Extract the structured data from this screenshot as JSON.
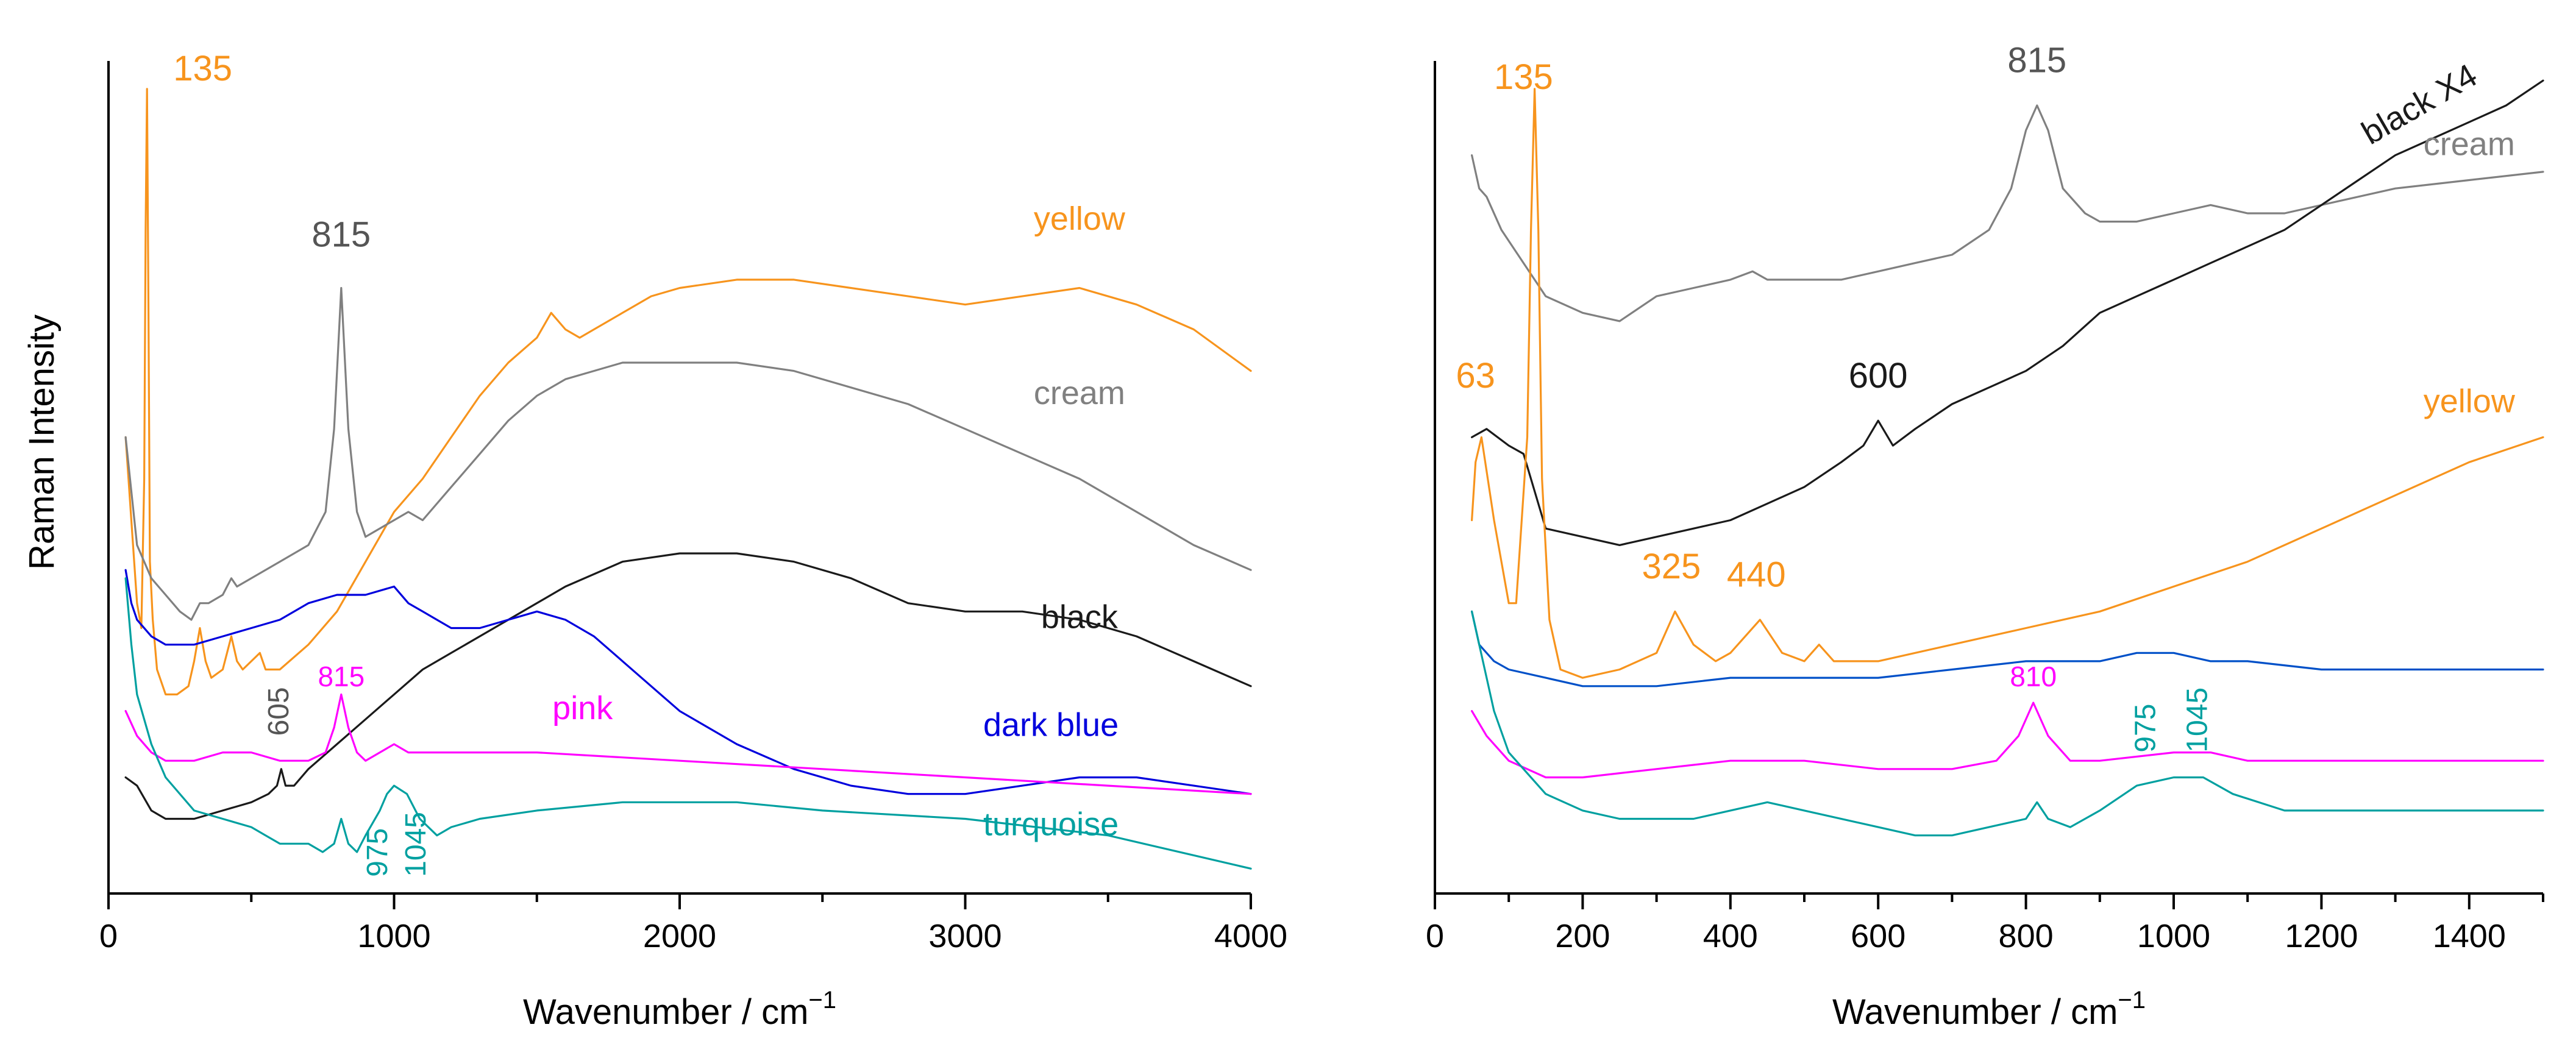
{
  "chart_data": [
    {
      "type": "line",
      "panel": "left",
      "xlabel": "Wavenumber / cm",
      "xlabel_sup": "−1",
      "ylabel": "Raman Intensity",
      "xlim": [
        0,
        4000
      ],
      "xticks": [
        "0",
        "1000",
        "2000",
        "3000",
        "4000"
      ],
      "xtick_values": [
        0,
        1000,
        2000,
        3000,
        4000
      ],
      "ylim": [
        0,
        100
      ],
      "yticks_shown": false,
      "series": [
        {
          "name": "yellow",
          "color": "#f7941d",
          "x": [
            60,
            100,
            115,
            125,
            130,
            135,
            140,
            145,
            155,
            170,
            200,
            240,
            280,
            300,
            320,
            340,
            360,
            400,
            430,
            450,
            470,
            500,
            530,
            550,
            600,
            700,
            800,
            900,
            1000,
            1100,
            1200,
            1300,
            1400,
            1500,
            1550,
            1600,
            1650,
            1700,
            1800,
            1900,
            2000,
            2200,
            2400,
            2600,
            2800,
            3000,
            3200,
            3400,
            3600,
            3800,
            4000
          ],
          "y": [
            55,
            35,
            32,
            50,
            80,
            97,
            70,
            40,
            33,
            27,
            24,
            24,
            25,
            28,
            32,
            28,
            26,
            27,
            31,
            28,
            27,
            28,
            29,
            27,
            27,
            30,
            34,
            40,
            46,
            50,
            55,
            60,
            64,
            67,
            70,
            68,
            67,
            68,
            70,
            72,
            73,
            74,
            74,
            73,
            72,
            71,
            72,
            73,
            71,
            68,
            63
          ]
        },
        {
          "name": "cream",
          "color": "#808080",
          "x": [
            60,
            100,
            150,
            200,
            250,
            290,
            320,
            350,
            400,
            430,
            450,
            500,
            600,
            700,
            760,
            790,
            815,
            840,
            870,
            900,
            1000,
            1050,
            1100,
            1200,
            1300,
            1400,
            1500,
            1600,
            1700,
            1800,
            1900,
            2000,
            2200,
            2400,
            2600,
            2800,
            3000,
            3200,
            3400,
            3600,
            3800,
            4000
          ],
          "y": [
            55,
            42,
            38,
            36,
            34,
            33,
            35,
            35,
            36,
            38,
            37,
            38,
            40,
            42,
            46,
            56,
            73,
            56,
            46,
            43,
            45,
            46,
            45,
            49,
            53,
            57,
            60,
            62,
            63,
            64,
            64,
            64,
            64,
            63,
            61,
            59,
            56,
            53,
            50,
            46,
            42,
            39
          ]
        },
        {
          "name": "black",
          "color": "#1a1a1a",
          "x": [
            60,
            100,
            150,
            200,
            300,
            400,
            500,
            560,
            590,
            605,
            620,
            650,
            700,
            800,
            900,
            1000,
            1100,
            1200,
            1400,
            1600,
            1800,
            2000,
            2200,
            2400,
            2600,
            2800,
            3000,
            3200,
            3400,
            3600,
            3800,
            4000
          ],
          "y": [
            14,
            13,
            10,
            9,
            9,
            10,
            11,
            12,
            13,
            15,
            13,
            13,
            15,
            18,
            21,
            24,
            27,
            29,
            33,
            37,
            40,
            41,
            41,
            40,
            38,
            35,
            34,
            34,
            33,
            31,
            28,
            25
          ]
        },
        {
          "name": "dark blue",
          "color": "#0000dd",
          "x": [
            60,
            80,
            100,
            150,
            200,
            300,
            400,
            500,
            600,
            700,
            800,
            900,
            1000,
            1050,
            1100,
            1200,
            1300,
            1400,
            1500,
            1600,
            1700,
            1800,
            1900,
            2000,
            2200,
            2400,
            2600,
            2800,
            3000,
            3200,
            3400,
            3600,
            3800,
            4000
          ],
          "y": [
            39,
            35,
            33,
            31,
            30,
            30,
            31,
            32,
            33,
            35,
            36,
            36,
            37,
            35,
            34,
            32,
            32,
            33,
            34,
            33,
            31,
            28,
            25,
            22,
            18,
            15,
            13,
            12,
            12,
            13,
            14,
            14,
            13,
            12
          ]
        },
        {
          "name": "pink",
          "color": "#ff00ff",
          "x": [
            60,
            100,
            150,
            200,
            300,
            400,
            500,
            600,
            700,
            760,
            790,
            815,
            840,
            870,
            900,
            1000,
            1050,
            1100,
            1200,
            1500,
            2000,
            2500,
            3000,
            3500,
            4000
          ],
          "y": [
            22,
            19,
            17,
            16,
            16,
            17,
            17,
            16,
            16,
            17,
            20,
            24,
            20,
            17,
            16,
            18,
            17,
            17,
            17,
            17,
            16,
            15,
            14,
            13,
            12
          ]
        },
        {
          "name": "turquoise",
          "color": "#00a0a0",
          "x": [
            60,
            80,
            100,
            150,
            200,
            300,
            400,
            500,
            550,
            600,
            700,
            750,
            790,
            815,
            840,
            870,
            900,
            950,
            975,
            1000,
            1045,
            1090,
            1150,
            1200,
            1300,
            1500,
            1800,
            2000,
            2200,
            2500,
            3000,
            3500,
            4000
          ],
          "y": [
            38,
            30,
            24,
            18,
            14,
            10,
            9,
            8,
            7,
            6,
            6,
            5,
            6,
            9,
            6,
            5,
            7,
            10,
            12,
            13,
            12,
            9,
            7,
            8,
            9,
            10,
            11,
            11,
            11,
            10,
            9,
            7,
            3
          ]
        }
      ],
      "labels": [
        {
          "text": "yellow",
          "color": "#f7941d",
          "x": 3400,
          "y": 80
        },
        {
          "text": "cream",
          "color": "#808080",
          "x": 3400,
          "y": 59
        },
        {
          "text": "black",
          "color": "#1a1a1a",
          "x": 3400,
          "y": 32
        },
        {
          "text": "pink",
          "color": "#ff00ff",
          "x": 1660,
          "y": 21
        },
        {
          "text": "dark blue",
          "color": "#0000dd",
          "x": 3300,
          "y": 19
        },
        {
          "text": "turquoise",
          "color": "#00a0a0",
          "x": 3300,
          "y": 7
        }
      ],
      "annotations": [
        {
          "text": "135",
          "color": "#f7941d",
          "x": 330,
          "y": 98,
          "rotate": false
        },
        {
          "text": "815",
          "color": "#555555",
          "x": 815,
          "y": 78,
          "rotate": false
        },
        {
          "text": "815",
          "color": "#ff00ff",
          "x": 815,
          "y": 25,
          "rotate": false
        },
        {
          "text": "605",
          "color": "#555555",
          "x": 630,
          "y": 19,
          "rotate": true
        },
        {
          "text": "975",
          "color": "#00a0a0",
          "x": 975,
          "y": 2,
          "rotate": true
        },
        {
          "text": "1045",
          "color": "#00a0a0",
          "x": 1110,
          "y": 2,
          "rotate": true
        }
      ]
    },
    {
      "type": "line",
      "panel": "right",
      "xlabel": "Wavenumber / cm",
      "xlabel_sup": "−1",
      "ylabel": "",
      "xlim": [
        0,
        1500
      ],
      "xticks": [
        "0",
        "200",
        "400",
        "600",
        "800",
        "1000",
        "1200",
        "1400"
      ],
      "xtick_values": [
        0,
        200,
        400,
        600,
        800,
        1000,
        1200,
        1400
      ],
      "ylim": [
        0,
        100
      ],
      "yticks_shown": false,
      "series": [
        {
          "name": "cream",
          "color": "#808080",
          "x": [
            50,
            60,
            70,
            90,
            120,
            150,
            200,
            250,
            300,
            350,
            400,
            430,
            450,
            500,
            550,
            600,
            650,
            700,
            750,
            780,
            800,
            815,
            830,
            850,
            880,
            900,
            950,
            1000,
            1050,
            1100,
            1150,
            1200,
            1300,
            1400,
            1500
          ],
          "y": [
            89,
            85,
            84,
            80,
            76,
            72,
            70,
            69,
            72,
            73,
            74,
            75,
            74,
            74,
            74,
            75,
            76,
            77,
            80,
            85,
            92,
            95,
            92,
            85,
            82,
            81,
            81,
            82,
            83,
            82,
            82,
            83,
            85,
            86,
            87
          ]
        },
        {
          "name": "black X4",
          "color": "#1a1a1a",
          "x": [
            50,
            70,
            100,
            120,
            150,
            200,
            250,
            300,
            350,
            400,
            450,
            500,
            550,
            580,
            600,
            620,
            650,
            700,
            750,
            800,
            850,
            900,
            950,
            1000,
            1050,
            1100,
            1150,
            1200,
            1250,
            1300,
            1350,
            1400,
            1450,
            1500
          ],
          "y": [
            55,
            56,
            54,
            53,
            44,
            43,
            42,
            43,
            44,
            45,
            47,
            49,
            52,
            54,
            57,
            54,
            56,
            59,
            61,
            63,
            66,
            70,
            72,
            74,
            76,
            78,
            80,
            83,
            86,
            89,
            91,
            93,
            95,
            98
          ]
        },
        {
          "name": "yellow",
          "color": "#f7941d",
          "x": [
            50,
            55,
            63,
            80,
            100,
            110,
            125,
            130,
            135,
            140,
            145,
            155,
            170,
            200,
            250,
            300,
            325,
            350,
            380,
            400,
            440,
            470,
            500,
            520,
            540,
            600,
            700,
            800,
            900,
            1000,
            1100,
            1200,
            1300,
            1400,
            1500
          ],
          "y": [
            45,
            52,
            55,
            45,
            35,
            35,
            55,
            80,
            97,
            80,
            50,
            33,
            27,
            26,
            27,
            29,
            34,
            30,
            28,
            29,
            33,
            29,
            28,
            30,
            28,
            28,
            30,
            32,
            34,
            37,
            40,
            44,
            48,
            52,
            55
          ]
        },
        {
          "name": "dark blue",
          "color": "#0050c8",
          "x": [
            50,
            60,
            80,
            100,
            150,
            200,
            300,
            400,
            450,
            500,
            600,
            700,
            800,
            900,
            950,
            1000,
            1050,
            1100,
            1200,
            1300,
            1400,
            1500
          ],
          "y": [
            34,
            30,
            28,
            27,
            26,
            25,
            25,
            26,
            26,
            26,
            26,
            27,
            28,
            28,
            29,
            29,
            28,
            28,
            27,
            27,
            27,
            27
          ]
        },
        {
          "name": "pink",
          "color": "#ff00ff",
          "x": [
            50,
            70,
            100,
            150,
            200,
            300,
            400,
            450,
            500,
            600,
            700,
            760,
            790,
            810,
            830,
            860,
            900,
            1000,
            1050,
            1100,
            1200,
            1300,
            1400,
            1500
          ],
          "y": [
            22,
            19,
            16,
            14,
            14,
            15,
            16,
            16,
            16,
            15,
            15,
            16,
            19,
            23,
            19,
            16,
            16,
            17,
            17,
            16,
            16,
            16,
            16,
            16
          ]
        },
        {
          "name": "turquoise",
          "color": "#00a0a0",
          "x": [
            50,
            60,
            80,
            100,
            150,
            200,
            250,
            300,
            350,
            400,
            450,
            500,
            600,
            650,
            700,
            750,
            800,
            815,
            830,
            860,
            900,
            950,
            1000,
            1040,
            1080,
            1150,
            1200,
            1300,
            1400,
            1500
          ],
          "y": [
            34,
            30,
            22,
            17,
            12,
            10,
            9,
            9,
            9,
            10,
            11,
            10,
            8,
            7,
            7,
            8,
            9,
            11,
            9,
            8,
            10,
            13,
            14,
            14,
            12,
            10,
            10,
            10,
            10,
            10
          ]
        }
      ],
      "labels": [
        {
          "text": "black X4",
          "color": "#1a1a1a",
          "x": 1340,
          "y": 94,
          "rotate": true
        },
        {
          "text": "cream",
          "color": "#808080",
          "x": 1400,
          "y": 89
        },
        {
          "text": "yellow",
          "color": "#f7941d",
          "x": 1400,
          "y": 58
        }
      ],
      "annotations": [
        {
          "text": "815",
          "color": "#555555",
          "x": 815,
          "y": 99,
          "rotate": false
        },
        {
          "text": "135",
          "color": "#f7941d",
          "x": 120,
          "y": 97,
          "rotate": false
        },
        {
          "text": "63",
          "color": "#f7941d",
          "x": 55,
          "y": 61,
          "rotate": false
        },
        {
          "text": "600",
          "color": "#1a1a1a",
          "x": 600,
          "y": 61,
          "rotate": false
        },
        {
          "text": "325",
          "color": "#f7941d",
          "x": 320,
          "y": 38,
          "rotate": false
        },
        {
          "text": "440",
          "color": "#f7941d",
          "x": 435,
          "y": 37,
          "rotate": false
        },
        {
          "text": "810",
          "color": "#ff00ff",
          "x": 810,
          "y": 25,
          "rotate": false
        },
        {
          "text": "975",
          "color": "#00a0a0",
          "x": 975,
          "y": 17,
          "rotate": true
        },
        {
          "text": "1045",
          "color": "#00a0a0",
          "x": 1045,
          "y": 17,
          "rotate": true
        }
      ]
    }
  ]
}
